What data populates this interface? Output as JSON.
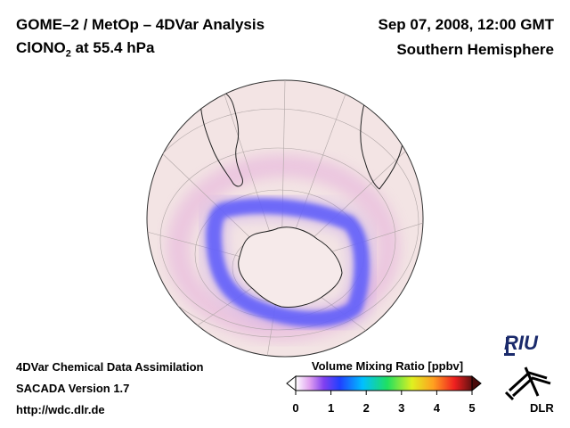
{
  "header": {
    "title": "GOME–2 / MetOp – 4DVar Analysis",
    "species_main": "ClONO",
    "species_sub": "2",
    "species_level": " at 55.4 hPa",
    "datetime": "Sep 07, 2008, 12:00 GMT",
    "region": "Southern Hemisphere"
  },
  "footer": {
    "line1": "4DVar Chemical Data Assimilation",
    "line2": "SACADA Version 1.7",
    "line3": "http://wdc.dlr.de"
  },
  "colorbar": {
    "title": "Volume Mixing Ratio [ppbv]",
    "ticks": [
      "0",
      "1",
      "2",
      "3",
      "4",
      "5"
    ],
    "range": [
      0,
      5
    ],
    "colors": [
      "#ffffff",
      "#e0a0f0",
      "#a060f0",
      "#2040ff",
      "#00c0ff",
      "#20e060",
      "#e0f020",
      "#ffa020",
      "#f02020",
      "#601010"
    ]
  },
  "map": {
    "projection": "orthographic",
    "hemisphere": "south",
    "background_color": "#f3e4e4",
    "ring_color": "#4a5cff",
    "ring_peak_ppbv": 0.6,
    "outer_band_ppbv": 0.15
  },
  "logos": {
    "riu": "RIU",
    "dlr": "DLR"
  }
}
